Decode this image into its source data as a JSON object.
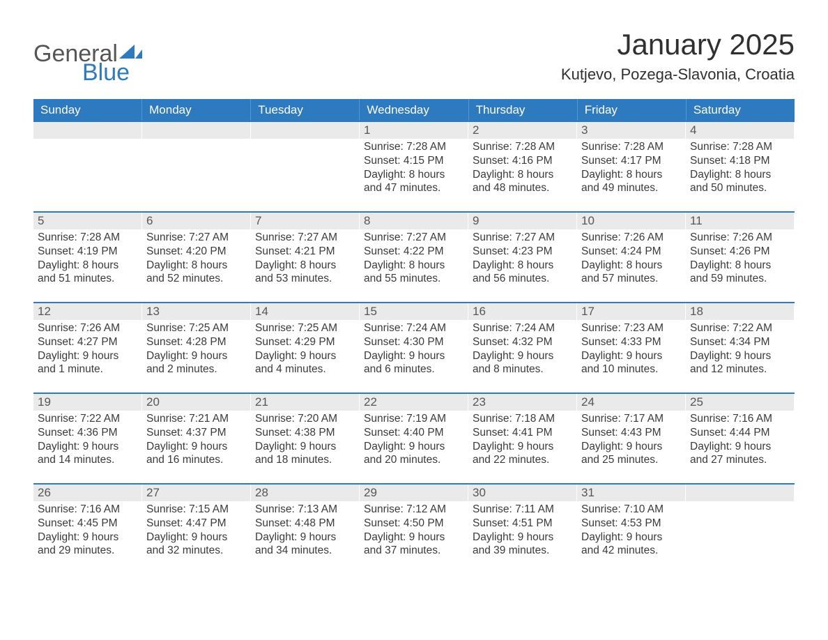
{
  "logo": {
    "general": "General",
    "blue": "Blue"
  },
  "title": "January 2025",
  "subtitle": "Kutjevo, Pozega-Slavonia, Croatia",
  "colors": {
    "brand_blue": "#2e7ac0",
    "header_text": "#ffffff",
    "daynum_bg": "#eaeaea",
    "daynum_fg": "#565656",
    "body_text": "#3a3a3a",
    "logo_gray": "#555555",
    "page_bg": "#ffffff"
  },
  "days_of_week": [
    "Sunday",
    "Monday",
    "Tuesday",
    "Wednesday",
    "Thursday",
    "Friday",
    "Saturday"
  ],
  "weeks": [
    [
      {
        "n": "",
        "sr": "",
        "ss": "",
        "d1": "",
        "d2": ""
      },
      {
        "n": "",
        "sr": "",
        "ss": "",
        "d1": "",
        "d2": ""
      },
      {
        "n": "",
        "sr": "",
        "ss": "",
        "d1": "",
        "d2": ""
      },
      {
        "n": "1",
        "sr": "Sunrise: 7:28 AM",
        "ss": "Sunset: 4:15 PM",
        "d1": "Daylight: 8 hours",
        "d2": "and 47 minutes."
      },
      {
        "n": "2",
        "sr": "Sunrise: 7:28 AM",
        "ss": "Sunset: 4:16 PM",
        "d1": "Daylight: 8 hours",
        "d2": "and 48 minutes."
      },
      {
        "n": "3",
        "sr": "Sunrise: 7:28 AM",
        "ss": "Sunset: 4:17 PM",
        "d1": "Daylight: 8 hours",
        "d2": "and 49 minutes."
      },
      {
        "n": "4",
        "sr": "Sunrise: 7:28 AM",
        "ss": "Sunset: 4:18 PM",
        "d1": "Daylight: 8 hours",
        "d2": "and 50 minutes."
      }
    ],
    [
      {
        "n": "5",
        "sr": "Sunrise: 7:28 AM",
        "ss": "Sunset: 4:19 PM",
        "d1": "Daylight: 8 hours",
        "d2": "and 51 minutes."
      },
      {
        "n": "6",
        "sr": "Sunrise: 7:27 AM",
        "ss": "Sunset: 4:20 PM",
        "d1": "Daylight: 8 hours",
        "d2": "and 52 minutes."
      },
      {
        "n": "7",
        "sr": "Sunrise: 7:27 AM",
        "ss": "Sunset: 4:21 PM",
        "d1": "Daylight: 8 hours",
        "d2": "and 53 minutes."
      },
      {
        "n": "8",
        "sr": "Sunrise: 7:27 AM",
        "ss": "Sunset: 4:22 PM",
        "d1": "Daylight: 8 hours",
        "d2": "and 55 minutes."
      },
      {
        "n": "9",
        "sr": "Sunrise: 7:27 AM",
        "ss": "Sunset: 4:23 PM",
        "d1": "Daylight: 8 hours",
        "d2": "and 56 minutes."
      },
      {
        "n": "10",
        "sr": "Sunrise: 7:26 AM",
        "ss": "Sunset: 4:24 PM",
        "d1": "Daylight: 8 hours",
        "d2": "and 57 minutes."
      },
      {
        "n": "11",
        "sr": "Sunrise: 7:26 AM",
        "ss": "Sunset: 4:26 PM",
        "d1": "Daylight: 8 hours",
        "d2": "and 59 minutes."
      }
    ],
    [
      {
        "n": "12",
        "sr": "Sunrise: 7:26 AM",
        "ss": "Sunset: 4:27 PM",
        "d1": "Daylight: 9 hours",
        "d2": "and 1 minute."
      },
      {
        "n": "13",
        "sr": "Sunrise: 7:25 AM",
        "ss": "Sunset: 4:28 PM",
        "d1": "Daylight: 9 hours",
        "d2": "and 2 minutes."
      },
      {
        "n": "14",
        "sr": "Sunrise: 7:25 AM",
        "ss": "Sunset: 4:29 PM",
        "d1": "Daylight: 9 hours",
        "d2": "and 4 minutes."
      },
      {
        "n": "15",
        "sr": "Sunrise: 7:24 AM",
        "ss": "Sunset: 4:30 PM",
        "d1": "Daylight: 9 hours",
        "d2": "and 6 minutes."
      },
      {
        "n": "16",
        "sr": "Sunrise: 7:24 AM",
        "ss": "Sunset: 4:32 PM",
        "d1": "Daylight: 9 hours",
        "d2": "and 8 minutes."
      },
      {
        "n": "17",
        "sr": "Sunrise: 7:23 AM",
        "ss": "Sunset: 4:33 PM",
        "d1": "Daylight: 9 hours",
        "d2": "and 10 minutes."
      },
      {
        "n": "18",
        "sr": "Sunrise: 7:22 AM",
        "ss": "Sunset: 4:34 PM",
        "d1": "Daylight: 9 hours",
        "d2": "and 12 minutes."
      }
    ],
    [
      {
        "n": "19",
        "sr": "Sunrise: 7:22 AM",
        "ss": "Sunset: 4:36 PM",
        "d1": "Daylight: 9 hours",
        "d2": "and 14 minutes."
      },
      {
        "n": "20",
        "sr": "Sunrise: 7:21 AM",
        "ss": "Sunset: 4:37 PM",
        "d1": "Daylight: 9 hours",
        "d2": "and 16 minutes."
      },
      {
        "n": "21",
        "sr": "Sunrise: 7:20 AM",
        "ss": "Sunset: 4:38 PM",
        "d1": "Daylight: 9 hours",
        "d2": "and 18 minutes."
      },
      {
        "n": "22",
        "sr": "Sunrise: 7:19 AM",
        "ss": "Sunset: 4:40 PM",
        "d1": "Daylight: 9 hours",
        "d2": "and 20 minutes."
      },
      {
        "n": "23",
        "sr": "Sunrise: 7:18 AM",
        "ss": "Sunset: 4:41 PM",
        "d1": "Daylight: 9 hours",
        "d2": "and 22 minutes."
      },
      {
        "n": "24",
        "sr": "Sunrise: 7:17 AM",
        "ss": "Sunset: 4:43 PM",
        "d1": "Daylight: 9 hours",
        "d2": "and 25 minutes."
      },
      {
        "n": "25",
        "sr": "Sunrise: 7:16 AM",
        "ss": "Sunset: 4:44 PM",
        "d1": "Daylight: 9 hours",
        "d2": "and 27 minutes."
      }
    ],
    [
      {
        "n": "26",
        "sr": "Sunrise: 7:16 AM",
        "ss": "Sunset: 4:45 PM",
        "d1": "Daylight: 9 hours",
        "d2": "and 29 minutes."
      },
      {
        "n": "27",
        "sr": "Sunrise: 7:15 AM",
        "ss": "Sunset: 4:47 PM",
        "d1": "Daylight: 9 hours",
        "d2": "and 32 minutes."
      },
      {
        "n": "28",
        "sr": "Sunrise: 7:13 AM",
        "ss": "Sunset: 4:48 PM",
        "d1": "Daylight: 9 hours",
        "d2": "and 34 minutes."
      },
      {
        "n": "29",
        "sr": "Sunrise: 7:12 AM",
        "ss": "Sunset: 4:50 PM",
        "d1": "Daylight: 9 hours",
        "d2": "and 37 minutes."
      },
      {
        "n": "30",
        "sr": "Sunrise: 7:11 AM",
        "ss": "Sunset: 4:51 PM",
        "d1": "Daylight: 9 hours",
        "d2": "and 39 minutes."
      },
      {
        "n": "31",
        "sr": "Sunrise: 7:10 AM",
        "ss": "Sunset: 4:53 PM",
        "d1": "Daylight: 9 hours",
        "d2": "and 42 minutes."
      },
      {
        "n": "",
        "sr": "",
        "ss": "",
        "d1": "",
        "d2": ""
      }
    ]
  ]
}
